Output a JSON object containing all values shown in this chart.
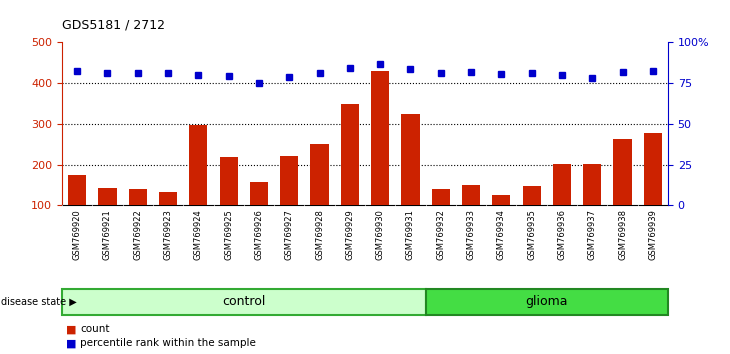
{
  "title": "GDS5181 / 2712",
  "samples": [
    "GSM769920",
    "GSM769921",
    "GSM769922",
    "GSM769923",
    "GSM769924",
    "GSM769925",
    "GSM769926",
    "GSM769927",
    "GSM769928",
    "GSM769929",
    "GSM769930",
    "GSM769931",
    "GSM769932",
    "GSM769933",
    "GSM769934",
    "GSM769935",
    "GSM769936",
    "GSM769937",
    "GSM769938",
    "GSM769939"
  ],
  "counts": [
    175,
    143,
    140,
    133,
    298,
    218,
    157,
    222,
    250,
    348,
    430,
    325,
    140,
    150,
    125,
    147,
    202,
    202,
    262,
    278
  ],
  "percentile_ranks": [
    430,
    425,
    425,
    425,
    420,
    418,
    400,
    415,
    425,
    438,
    448,
    435,
    425,
    427,
    422,
    425,
    420,
    413,
    428,
    430
  ],
  "control_count": 12,
  "glioma_count": 8,
  "bar_color": "#cc2200",
  "dot_color": "#0000cc",
  "left_ylim": [
    100,
    500
  ],
  "left_yticks": [
    100,
    200,
    300,
    400,
    500
  ],
  "right_ylim": [
    0,
    100
  ],
  "right_yticks": [
    0,
    25,
    50,
    75,
    100
  ],
  "right_yticklabels": [
    "0",
    "25",
    "50",
    "75",
    "100%"
  ],
  "grid_values": [
    200,
    300,
    400
  ],
  "control_color": "#ccffcc",
  "control_border": "#33aa33",
  "glioma_color": "#44dd44",
  "glioma_border": "#228822",
  "disease_state_label": "disease state",
  "control_label": "control",
  "glioma_label": "glioma",
  "legend_count_label": "count",
  "legend_pct_label": "percentile rank within the sample",
  "tick_bg_color": "#cccccc",
  "plot_bg_color": "#ffffff"
}
